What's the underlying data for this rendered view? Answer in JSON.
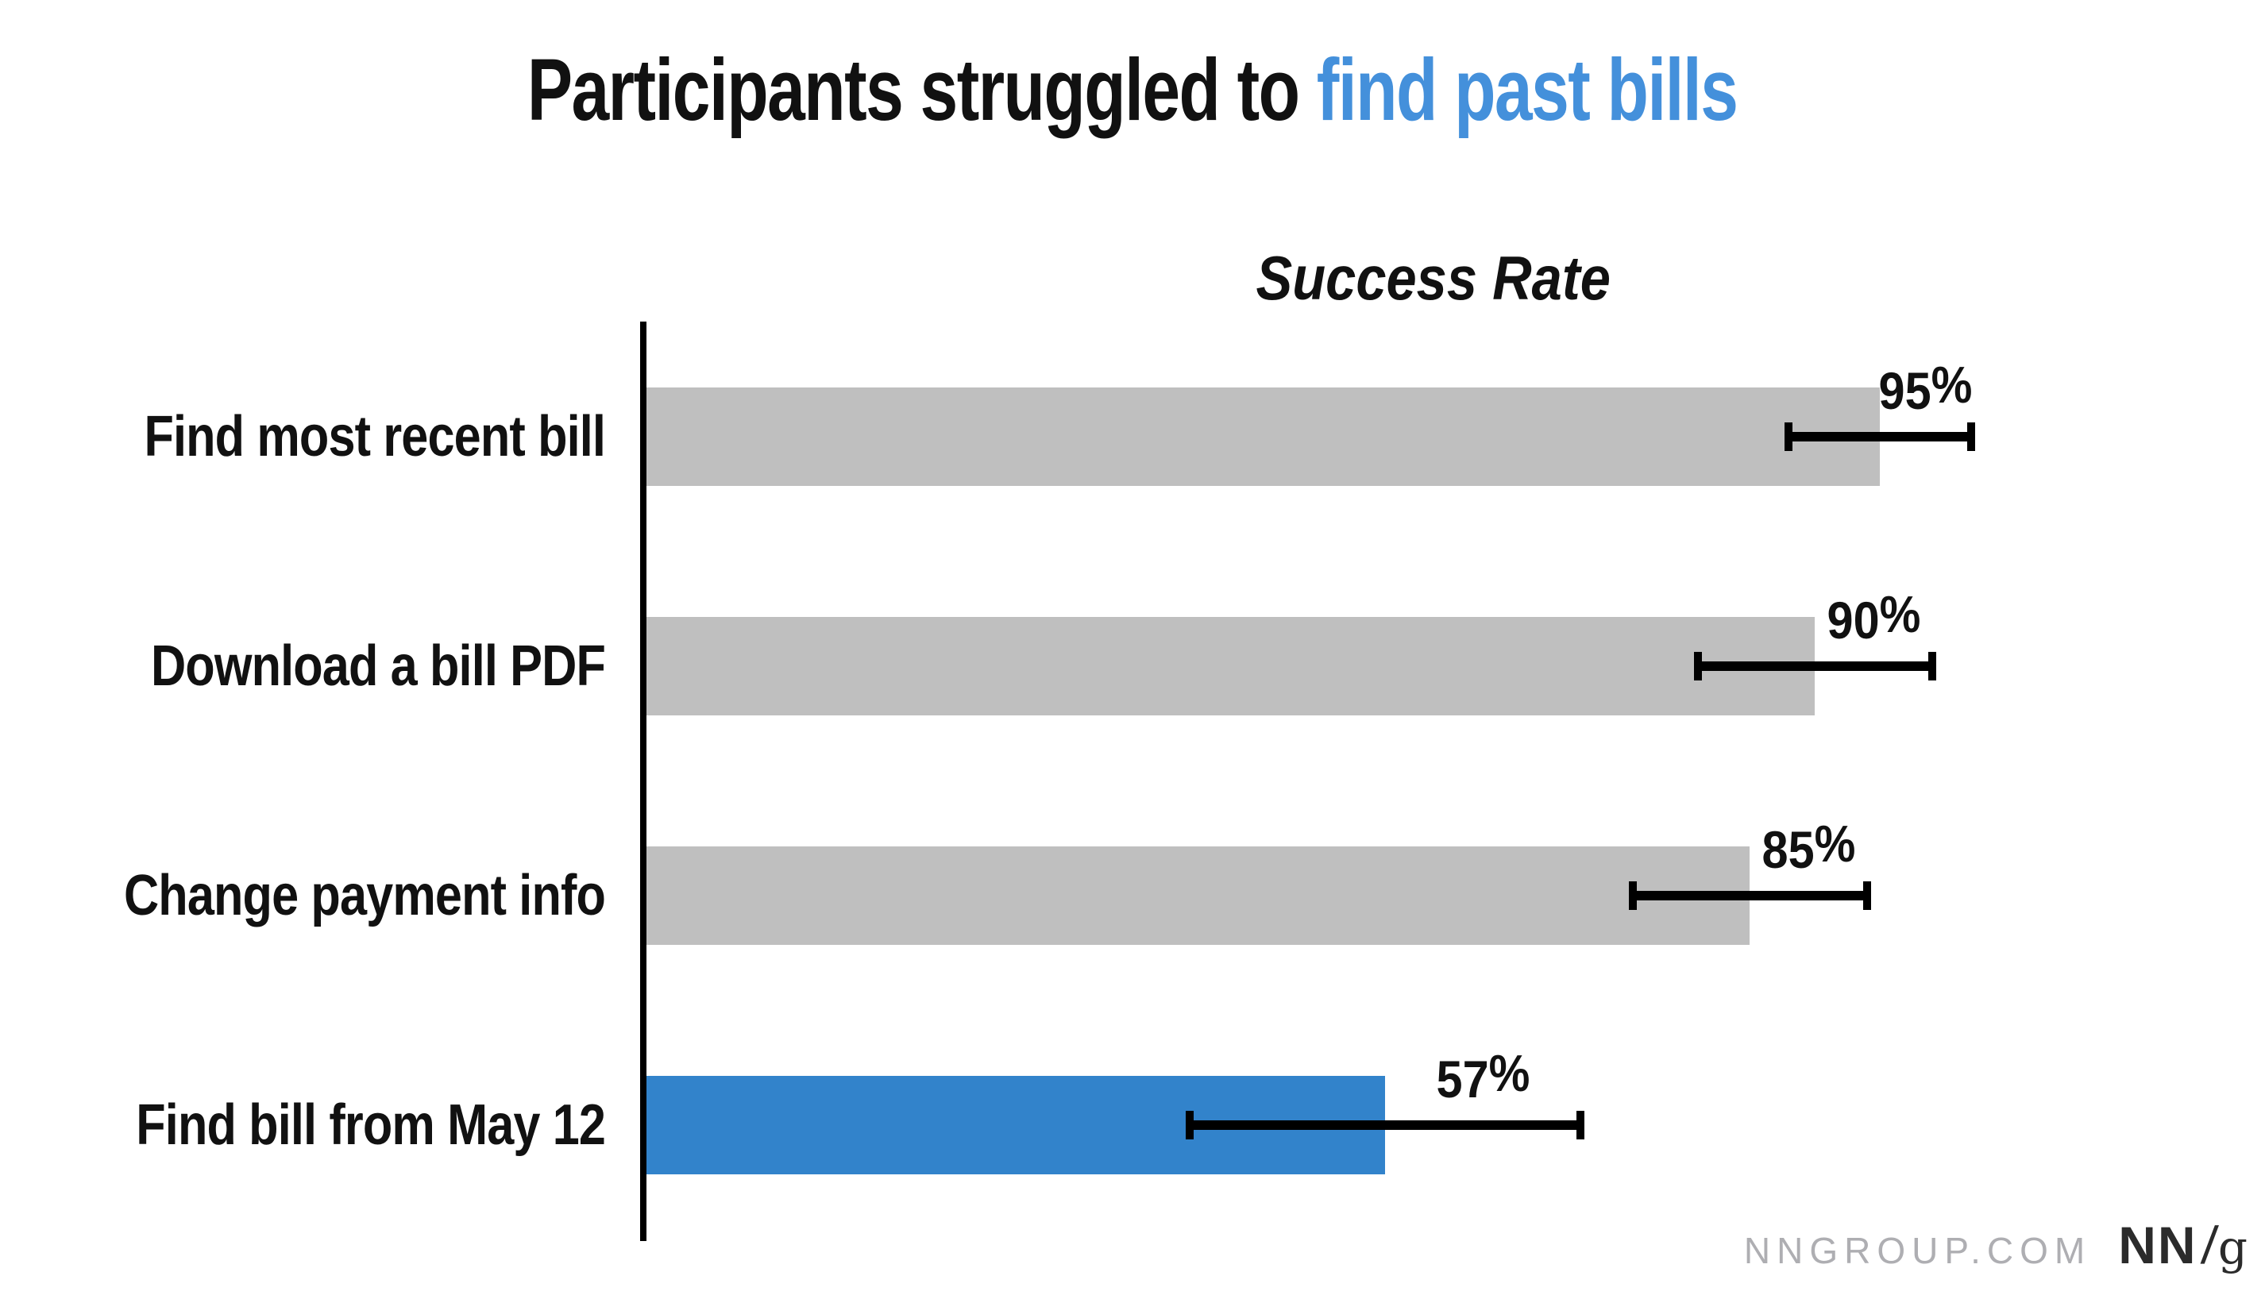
{
  "title": {
    "black_part": "Participants struggled to ",
    "accent_part": "find past bills"
  },
  "subtitle": "Success Rate",
  "footer": {
    "site": "NNGROUP.COM",
    "logo_nn": "NN",
    "logo_slash": "/",
    "logo_g": "g"
  },
  "colors": {
    "accent_blue": "#4490DB",
    "bar_blue": "#3283CB",
    "bar_gray": "#BFBFBF",
    "muted_gray": "#AEAEB2",
    "ink": "#111111",
    "axis_black": "#000000"
  },
  "chart_data": {
    "type": "bar",
    "orientation": "horizontal",
    "title": "Participants struggled to find past bills",
    "title_highlight": "find past bills",
    "axis_title": "Success Rate",
    "categories": [
      "Find most recent bill",
      "Download a bill PDF",
      "Change payment info",
      "Find bill from May 12"
    ],
    "values": [
      95,
      90,
      85,
      57
    ],
    "value_labels": [
      "95%",
      "90%",
      "85%",
      "57%"
    ],
    "unit": "%",
    "error_bars": [
      {
        "low": 88,
        "high": 102
      },
      {
        "low": 81,
        "high": 99
      },
      {
        "low": 76,
        "high": 94
      },
      {
        "low": 42,
        "high": 72
      }
    ],
    "bar_colors": [
      "#BFBFBF",
      "#BFBFBF",
      "#BFBFBF",
      "#3283CB"
    ],
    "highlight_index": 3,
    "xlim": [
      0,
      100
    ],
    "grid": false,
    "legend": false
  }
}
